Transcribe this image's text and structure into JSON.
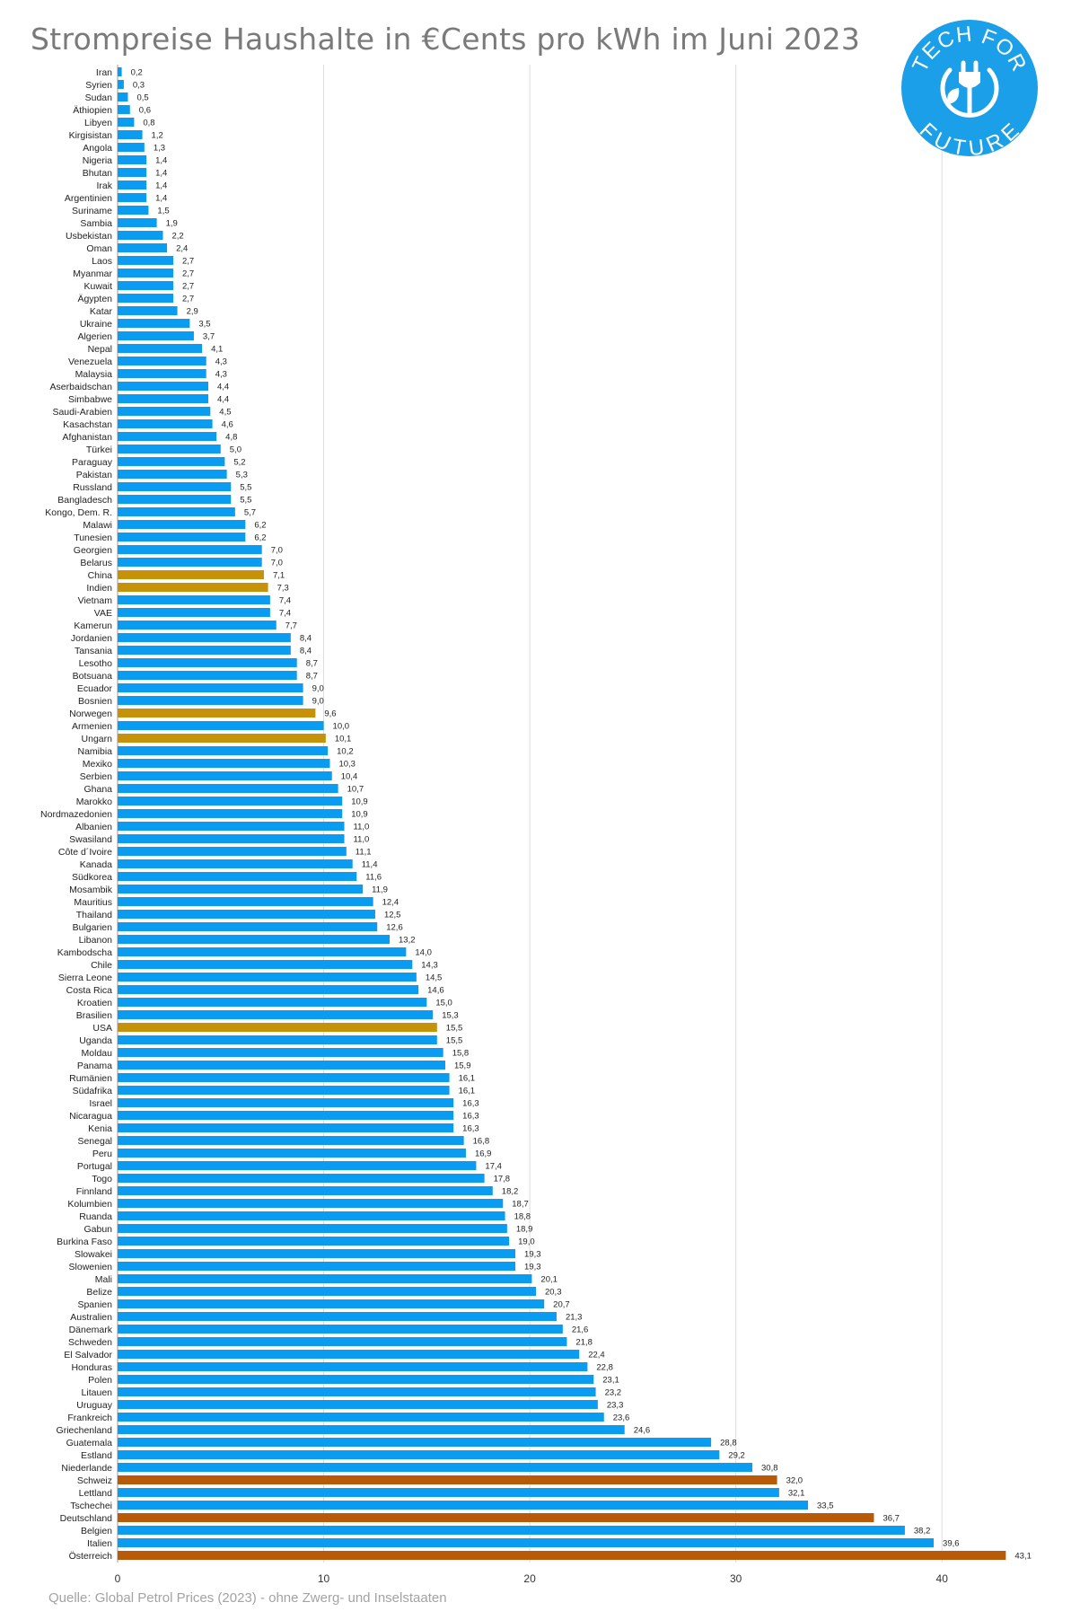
{
  "title": "Strompreise Haushalte in €Cents pro kWh im Juni 2023",
  "source": "Quelle: Global Petrol Prices (2023) - ohne Zwerg- und Inselstaaten",
  "logo": {
    "top_text": "TECH FOR",
    "bottom_text": "FUTURE",
    "icon": "plug-leaf-icon",
    "color": "#1a9fe8"
  },
  "colors": {
    "default": "#0a9cf0",
    "highlight_gold": "#c6920a",
    "highlight_orange": "#b85a08"
  },
  "chart_data": {
    "type": "bar",
    "orientation": "horizontal",
    "title": "Strompreise Haushalte in €Cents pro kWh im Juni 2023",
    "xlabel": "",
    "ylabel": "",
    "xlim": [
      0,
      45
    ],
    "xticks": [
      0,
      10,
      20,
      30,
      40
    ],
    "grid": true,
    "categories": [
      "Iran",
      "Syrien",
      "Sudan",
      "Äthiopien",
      "Libyen",
      "Kirgisistan",
      "Angola",
      "Nigeria",
      "Bhutan",
      "Irak",
      "Argentinien",
      "Suriname",
      "Sambia",
      "Usbekistan",
      "Oman",
      "Laos",
      "Myanmar",
      "Kuwait",
      "Ägypten",
      "Katar",
      "Ukraine",
      "Algerien",
      "Nepal",
      "Venezuela",
      "Malaysia",
      "Aserbaidschan",
      "Simbabwe",
      "Saudi-Arabien",
      "Kasachstan",
      "Afghanistan",
      "Türkei",
      "Paraguay",
      "Pakistan",
      "Russland",
      "Bangladesch",
      "Kongo, Dem. R.",
      "Malawi",
      "Tunesien",
      "Georgien",
      "Belarus",
      "China",
      "Indien",
      "Vietnam",
      "VAE",
      "Kamerun",
      "Jordanien",
      "Tansania",
      "Lesotho",
      "Botsuana",
      "Ecuador",
      "Bosnien",
      "Norwegen",
      "Armenien",
      "Ungarn",
      "Namibia",
      "Mexiko",
      "Serbien",
      "Ghana",
      "Marokko",
      "Nordmazedonien",
      "Albanien",
      "Swasiland",
      "Côte d´Ivoire",
      "Kanada",
      "Südkorea",
      "Mosambik",
      "Mauritius",
      "Thailand",
      "Bulgarien",
      "Libanon",
      "Kambodscha",
      "Chile",
      "Sierra Leone",
      "Costa Rica",
      "Kroatien",
      "Brasilien",
      "USA",
      "Uganda",
      "Moldau",
      "Panama",
      "Rumänien",
      "Südafrika",
      "Israel",
      "Nicaragua",
      "Kenia",
      "Senegal",
      "Peru",
      "Portugal",
      "Togo",
      "Finnland",
      "Kolumbien",
      "Ruanda",
      "Gabun",
      "Burkina Faso",
      "Slowakei",
      "Slowenien",
      "Mali",
      "Belize",
      "Spanien",
      "Australien",
      "Dänemark",
      "Schweden",
      "El Salvador",
      "Honduras",
      "Polen",
      "Litauen",
      "Uruguay",
      "Frankreich",
      "Griechenland",
      "Guatemala",
      "Estland",
      "Niederlande",
      "Schweiz",
      "Lettland",
      "Tschechei",
      "Deutschland",
      "Belgien",
      "Italien",
      "Österreich"
    ],
    "values": [
      0.2,
      0.3,
      0.5,
      0.6,
      0.8,
      1.2,
      1.3,
      1.4,
      1.4,
      1.4,
      1.4,
      1.5,
      1.9,
      2.2,
      2.4,
      2.7,
      2.7,
      2.7,
      2.7,
      2.9,
      3.5,
      3.7,
      4.1,
      4.3,
      4.3,
      4.4,
      4.4,
      4.5,
      4.6,
      4.8,
      5.0,
      5.2,
      5.3,
      5.5,
      5.5,
      5.7,
      6.2,
      6.2,
      7.0,
      7.0,
      7.1,
      7.3,
      7.4,
      7.4,
      7.7,
      8.4,
      8.4,
      8.7,
      8.7,
      9.0,
      9.0,
      9.6,
      10.0,
      10.1,
      10.2,
      10.3,
      10.4,
      10.7,
      10.9,
      10.9,
      11.0,
      11.0,
      11.1,
      11.4,
      11.6,
      11.9,
      12.4,
      12.5,
      12.6,
      13.2,
      14.0,
      14.3,
      14.5,
      14.6,
      15.0,
      15.3,
      15.5,
      15.5,
      15.8,
      15.9,
      16.1,
      16.1,
      16.3,
      16.3,
      16.3,
      16.8,
      16.9,
      17.4,
      17.8,
      18.2,
      18.7,
      18.8,
      18.9,
      19.0,
      19.3,
      19.3,
      20.1,
      20.3,
      20.7,
      21.3,
      21.6,
      21.8,
      22.4,
      22.8,
      23.1,
      23.2,
      23.3,
      23.6,
      24.6,
      28.8,
      29.2,
      30.8,
      32.0,
      32.1,
      33.5,
      36.7,
      38.2,
      39.6,
      43.1
    ],
    "value_labels": [
      "0,2",
      "0,3",
      "0,5",
      "0,6",
      "0,8",
      "1,2",
      "1,3",
      "1,4",
      "1,4",
      "1,4",
      "1,4",
      "1,5",
      "1,9",
      "2,2",
      "2,4",
      "2,7",
      "2,7",
      "2,7",
      "2,7",
      "2,9",
      "3,5",
      "3,7",
      "4,1",
      "4,3",
      "4,3",
      "4,4",
      "4,4",
      "4,5",
      "4,6",
      "4,8",
      "5,0",
      "5,2",
      "5,3",
      "5,5",
      "5,5",
      "5,7",
      "6,2",
      "6,2",
      "7,0",
      "7,0",
      "7,1",
      "7,3",
      "7,4",
      "7,4",
      "7,7",
      "8,4",
      "8,4",
      "8,7",
      "8,7",
      "9,0",
      "9,0",
      "9,6",
      "10,0",
      "10,1",
      "10,2",
      "10,3",
      "10,4",
      "10,7",
      "10,9",
      "10,9",
      "11,0",
      "11,0",
      "11,1",
      "11,4",
      "11,6",
      "11,9",
      "12,4",
      "12,5",
      "12,6",
      "13,2",
      "14,0",
      "14,3",
      "14,5",
      "14,6",
      "15,0",
      "15,3",
      "15,5",
      "15,5",
      "15,8",
      "15,9",
      "16,1",
      "16,1",
      "16,3",
      "16,3",
      "16,3",
      "16,8",
      "16,9",
      "17,4",
      "17,8",
      "18,2",
      "18,7",
      "18,8",
      "18,9",
      "19,0",
      "19,3",
      "19,3",
      "20,1",
      "20,3",
      "20,7",
      "21,3",
      "21,6",
      "21,8",
      "22,4",
      "22,8",
      "23,1",
      "23,2",
      "23,3",
      "23,6",
      "24,6",
      "28,8",
      "29,2",
      "30,8",
      "32,0",
      "32,1",
      "33,5",
      "36,7",
      "38,2",
      "39,6",
      "43,1"
    ],
    "highlights": {
      "China": "highlight_gold",
      "Indien": "highlight_gold",
      "Norwegen": "highlight_gold",
      "Ungarn": "highlight_gold",
      "USA": "highlight_gold",
      "Schweiz": "highlight_orange",
      "Deutschland": "highlight_orange",
      "Österreich": "highlight_orange"
    }
  }
}
